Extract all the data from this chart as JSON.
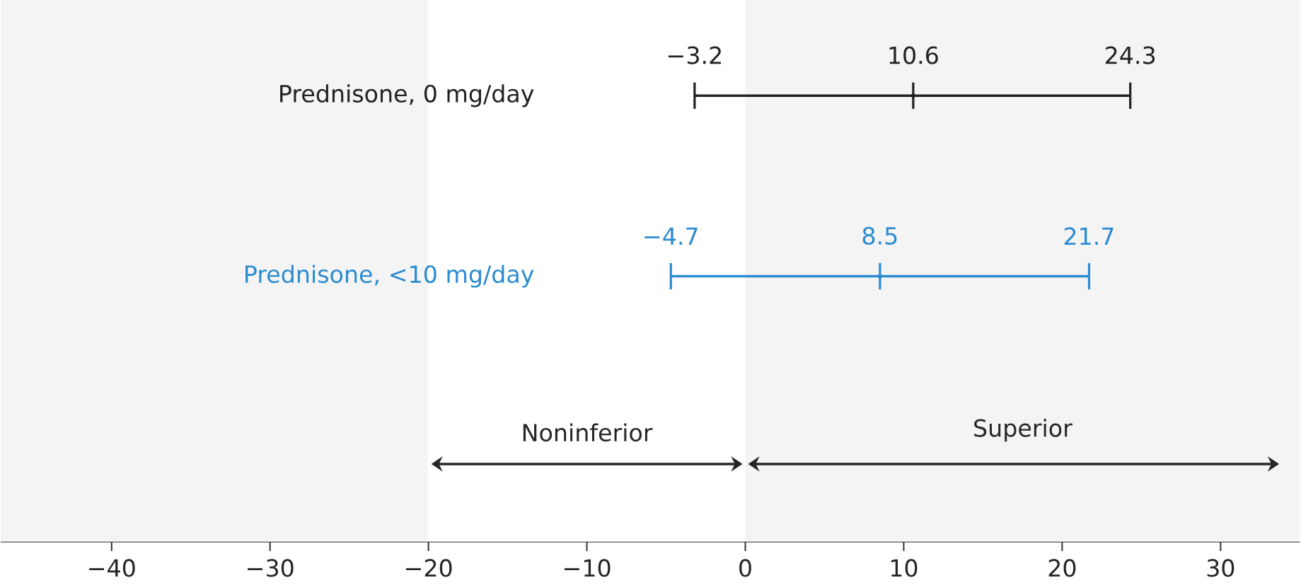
{
  "chart_data": {
    "type": "scatter",
    "orientation": "horizontal",
    "categories": [
      "Prednisone, 0 mg/day",
      "Prednisone, <10 mg/day"
    ],
    "values": [
      10.6,
      8.5
    ],
    "errors": [
      [
        -3.2,
        24.3
      ],
      [
        -4.7,
        21.7
      ]
    ],
    "colors": [
      "#222222",
      "#2a8bd0"
    ],
    "data_labels": true,
    "annotations": [
      {
        "text": "−3.2",
        "x": -3.2,
        "y": "Prednisone, 0 mg/day"
      },
      {
        "text": "24.3",
        "x": 24.3,
        "y": "Prednisone, 0 mg/day"
      },
      {
        "text": "−4.7",
        "x": -4.7,
        "y": "Prednisone, <10 mg/day"
      },
      {
        "text": "21.7",
        "x": 21.7,
        "y": "Prednisone, <10 mg/day"
      }
    ],
    "bands": [
      {
        "axis": "x",
        "from": -47,
        "to": -20,
        "color": "#f4f4f4"
      },
      {
        "axis": "x",
        "from": -20,
        "to": 0,
        "label": "Noninferior",
        "color": "#ffffff"
      },
      {
        "axis": "x",
        "from": 0,
        "to": 35,
        "label": "Superior",
        "color": "#f4f4f4"
      }
    ],
    "xlim": [
      -47,
      35
    ],
    "xticks": [
      {
        "value": -40,
        "label": "−40"
      },
      {
        "value": -30,
        "label": "−30"
      },
      {
        "value": -20,
        "label": "−20"
      },
      {
        "value": -10,
        "label": "−10"
      },
      0,
      10,
      20,
      30
    ]
  }
}
